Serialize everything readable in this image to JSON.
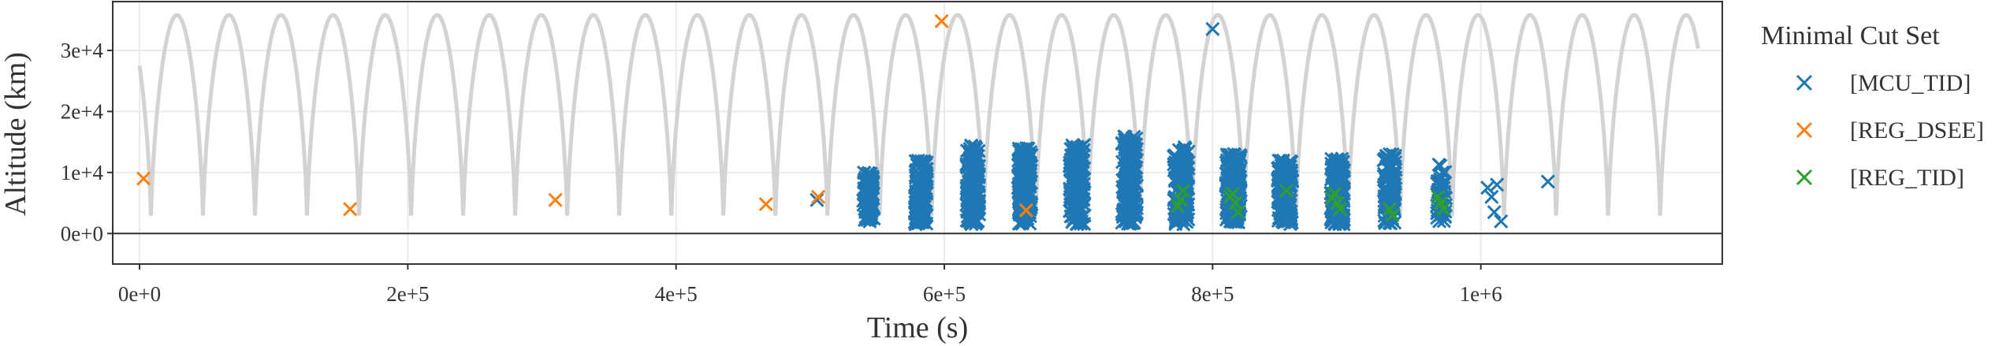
{
  "chart_data": {
    "type": "scatter",
    "xlabel": "Time (s)",
    "ylabel": "Altitude (km)",
    "xlim": [
      -20000,
      1180000
    ],
    "ylim": [
      -5000,
      38000
    ],
    "x_ticks": [
      {
        "value": 0,
        "label": "0e+0"
      },
      {
        "value": 200000,
        "label": "2e+5"
      },
      {
        "value": 400000,
        "label": "4e+5"
      },
      {
        "value": 600000,
        "label": "6e+5"
      },
      {
        "value": 800000,
        "label": "8e+5"
      },
      {
        "value": 1000000,
        "label": "1e+6"
      }
    ],
    "y_ticks": [
      {
        "value": 0,
        "label": "0e+0"
      },
      {
        "value": 10000,
        "label": "1e+4"
      },
      {
        "value": 20000,
        "label": "2e+4"
      },
      {
        "value": 30000,
        "label": "3e+4"
      }
    ],
    "grid": true,
    "legend": {
      "title": "Minimal Cut Set",
      "placement": "right",
      "entries": [
        {
          "label": "[MCU_TID]",
          "color": "#1f77b4"
        },
        {
          "label": "[REG_DSEE]",
          "color": "#ff7f0e"
        },
        {
          "label": "[REG_TID]",
          "color": "#2ca02c"
        }
      ]
    },
    "orbit": {
      "color": "#d3d3d3",
      "period_s": 38800,
      "perigee_time_s": 8500,
      "perigee_km": 1000,
      "apogee_km": 35800,
      "t_end_s": 1162000
    },
    "series": [
      {
        "name": "[MCU_TID]",
        "color": "#1f77b4",
        "points": [
          [
            505000,
            5500
          ],
          [
            800000,
            33500
          ],
          [
            1050000,
            8500
          ],
          [
            1010000,
            3500
          ],
          [
            1012000,
            8000
          ],
          [
            1008000,
            6000
          ],
          [
            1015000,
            2000
          ],
          [
            1005000,
            7500
          ]
        ],
        "clusters": [
          {
            "x": 543500,
            "halfwidth": 4000,
            "ymin": 2000,
            "ymax": 10000,
            "count": 90
          },
          {
            "x": 582500,
            "halfwidth": 4500,
            "ymin": 1500,
            "ymax": 12000,
            "count": 130
          },
          {
            "x": 621500,
            "halfwidth": 5000,
            "ymin": 1500,
            "ymax": 14500,
            "count": 160
          },
          {
            "x": 660000,
            "halfwidth": 5000,
            "ymin": 1500,
            "ymax": 14000,
            "count": 160
          },
          {
            "x": 699000,
            "halfwidth": 5500,
            "ymin": 1500,
            "ymax": 14500,
            "count": 170
          },
          {
            "x": 738000,
            "halfwidth": 5500,
            "ymin": 1500,
            "ymax": 16000,
            "count": 170
          },
          {
            "x": 776500,
            "halfwidth": 5500,
            "ymin": 1500,
            "ymax": 14500,
            "count": 170
          },
          {
            "x": 815500,
            "halfwidth": 5500,
            "ymin": 1500,
            "ymax": 13000,
            "count": 160
          },
          {
            "x": 854000,
            "halfwidth": 5500,
            "ymin": 1500,
            "ymax": 12000,
            "count": 150
          },
          {
            "x": 893000,
            "halfwidth": 5000,
            "ymin": 1500,
            "ymax": 12500,
            "count": 150
          },
          {
            "x": 932000,
            "halfwidth": 4500,
            "ymin": 1500,
            "ymax": 13000,
            "count": 90
          },
          {
            "x": 970500,
            "halfwidth": 3500,
            "ymin": 2000,
            "ymax": 11500,
            "count": 45
          }
        ]
      },
      {
        "name": "[REG_DSEE]",
        "color": "#ff7f0e",
        "points": [
          [
            3000,
            9000
          ],
          [
            157000,
            4000
          ],
          [
            310000,
            5500
          ],
          [
            467000,
            4800
          ],
          [
            506000,
            6000
          ],
          [
            598000,
            34800
          ],
          [
            661000,
            3800
          ]
        ]
      },
      {
        "name": "[REG_TID]",
        "color": "#2ca02c",
        "points": [
          [
            776000,
            5500
          ],
          [
            778000,
            7000
          ],
          [
            774000,
            4500
          ],
          [
            815000,
            6500
          ],
          [
            817000,
            5000
          ],
          [
            819000,
            3500
          ],
          [
            813000,
            6000
          ],
          [
            855000,
            7000
          ],
          [
            891000,
            6500
          ],
          [
            893000,
            5000
          ],
          [
            895000,
            4000
          ],
          [
            889000,
            5800
          ],
          [
            932000,
            4000
          ],
          [
            934000,
            3000
          ],
          [
            970000,
            5000
          ],
          [
            972000,
            4000
          ],
          [
            968000,
            6000
          ]
        ]
      }
    ]
  }
}
